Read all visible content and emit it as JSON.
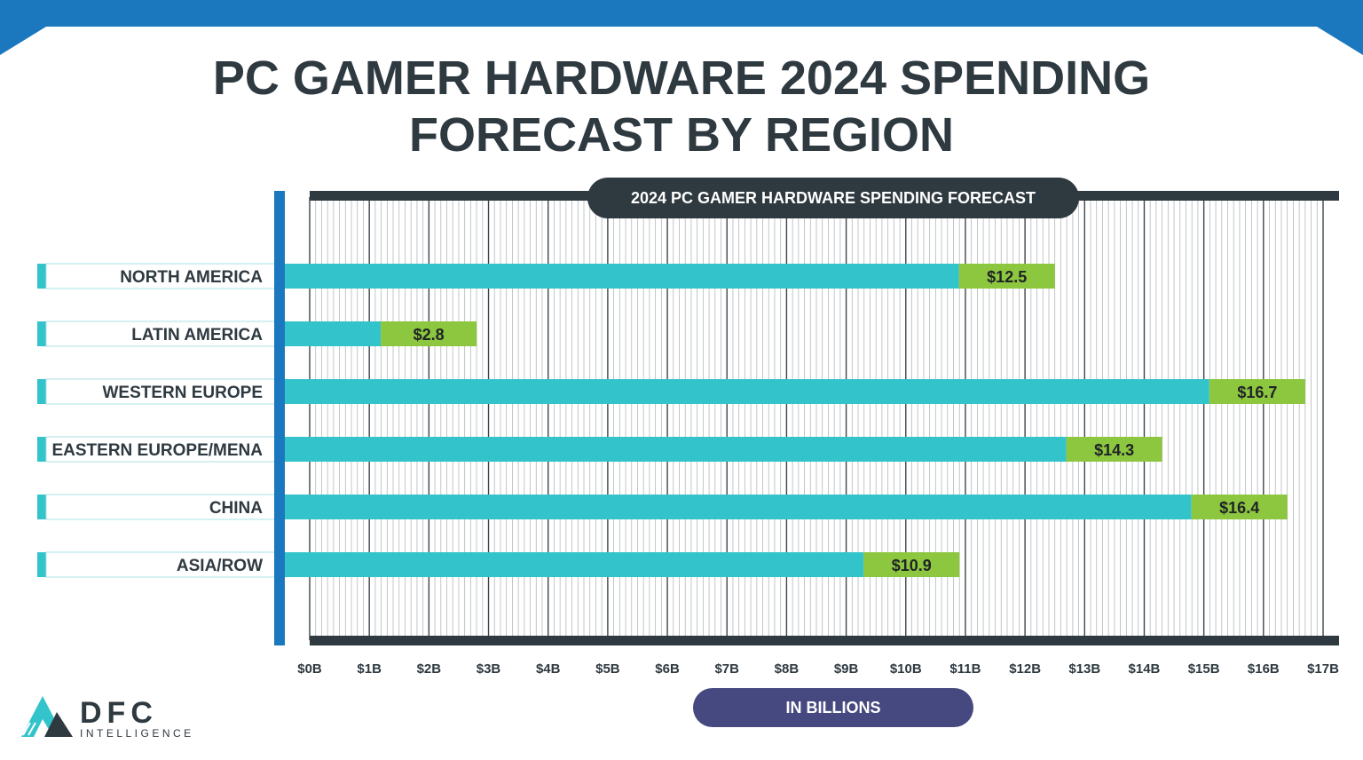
{
  "title_lines": [
    "PC GAMER HARDWARE 2024 SPENDING",
    "FORECAST BY REGION"
  ],
  "chart_data": {
    "type": "bar",
    "orientation": "horizontal",
    "title": "2024 PC GAMER HARDWARE SPENDING FORECAST",
    "categories": [
      "NORTH AMERICA",
      "LATIN AMERICA",
      "WESTERN EUROPE",
      "EASTERN EUROPE/MENA",
      "CHINA",
      "ASIA/ROW"
    ],
    "values": [
      12.5,
      2.8,
      16.7,
      14.3,
      16.4,
      10.9
    ],
    "value_labels": [
      "$12.5",
      "$2.8",
      "$16.7",
      "$14.3",
      "$16.4",
      "$10.9"
    ],
    "x_ticks": [
      "$0B",
      "$1B",
      "$2B",
      "$3B",
      "$4B",
      "$5B",
      "$6B",
      "$7B",
      "$8B",
      "$9B",
      "$10B",
      "$11B",
      "$12B",
      "$13B",
      "$14B",
      "$15B",
      "$16B",
      "$17B"
    ],
    "xlim": [
      0,
      17
    ],
    "xlabel": "IN BILLIONS",
    "ylabel": "",
    "grid": true,
    "legend": "none"
  },
  "logo": {
    "name": "DFC",
    "tagline": "INTELLIGENCE"
  },
  "colors": {
    "title": "#2e3940",
    "bar": "#33c3cb",
    "bar_end": "#8dc63f",
    "axis": "#1c78be",
    "frame": "#2e3940",
    "band": "#1c78be",
    "unit_pill": "#46497f"
  }
}
